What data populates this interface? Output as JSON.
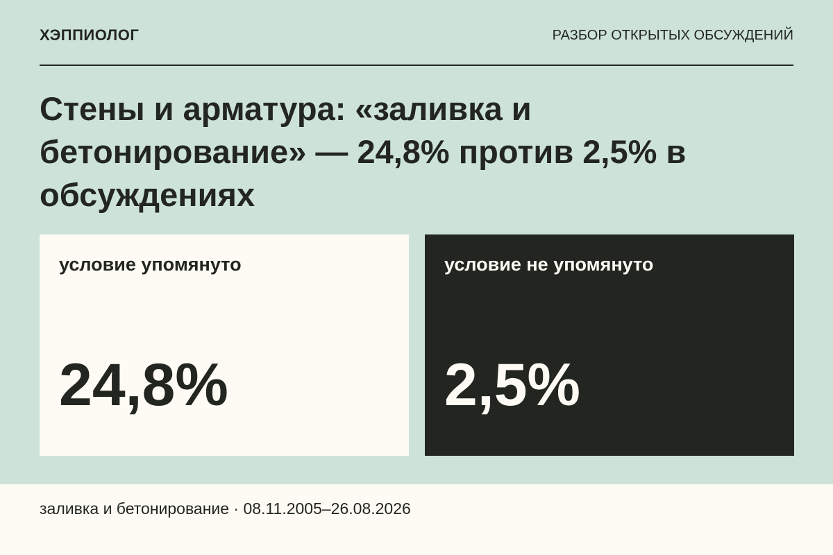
{
  "header": {
    "brand": "ХЭППИОЛОГ",
    "section": "РАЗБОР ОТКРЫТЫХ ОБСУЖДЕНИЙ"
  },
  "title": "Стены и арматура: «заливка и бетонирование» — 24,8% против 2,5% в обсуждениях",
  "cards": [
    {
      "label": "условие упомянуто",
      "value": "24,8%"
    },
    {
      "label": "условие не упомянуто",
      "value": "2,5%"
    }
  ],
  "footer": "заливка и бетонирование · 08.11.2005–26.08.2026"
}
